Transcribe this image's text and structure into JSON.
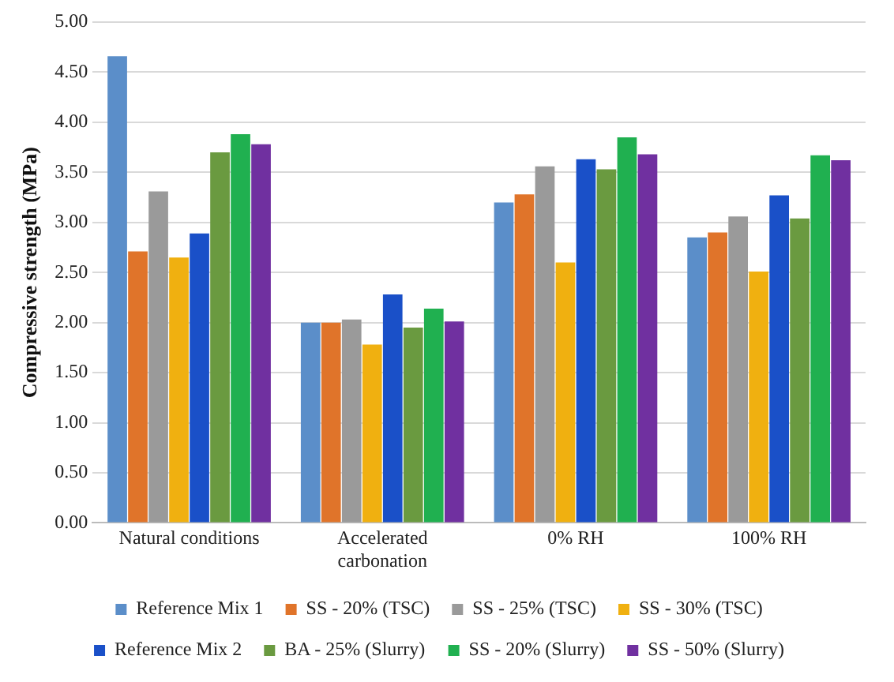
{
  "chart_data": {
    "type": "bar",
    "ylabel": "Compressive strength (MPa)",
    "categories": [
      "Natural conditions",
      "Accelerated carbonation",
      "0% RH",
      "100% RH"
    ],
    "series": [
      {
        "name": "Reference Mix 1",
        "color": "#5b8ec9",
        "values": [
          4.66,
          2.0,
          3.2,
          2.85
        ]
      },
      {
        "name": "SS - 20% (TSC)",
        "color": "#e0742a",
        "values": [
          2.71,
          2.0,
          3.28,
          2.9
        ]
      },
      {
        "name": "SS - 25% (TSC)",
        "color": "#9a9a9a",
        "values": [
          3.31,
          2.03,
          3.56,
          3.06
        ]
      },
      {
        "name": "SS - 30% (TSC)",
        "color": "#f0b010",
        "values": [
          2.65,
          1.78,
          2.6,
          2.51
        ]
      },
      {
        "name": "Reference Mix 2",
        "color": "#1a50c8",
        "values": [
          2.89,
          2.28,
          3.63,
          3.27
        ]
      },
      {
        "name": "BA - 25% (Slurry)",
        "color": "#6a9a40",
        "values": [
          3.7,
          1.95,
          3.53,
          3.04
        ]
      },
      {
        "name": "SS - 20% (Slurry)",
        "color": "#20b050",
        "values": [
          3.88,
          2.14,
          3.85,
          3.67
        ]
      },
      {
        "name": "SS - 50% (Slurry)",
        "color": "#7030a0",
        "values": [
          3.78,
          2.01,
          3.68,
          3.62
        ]
      }
    ],
    "ylim": [
      0,
      5
    ],
    "yticks": [
      {
        "value": 0,
        "label": "0.00"
      },
      {
        "value": 0.5,
        "label": "0.50"
      },
      {
        "value": 1,
        "label": "1.00"
      },
      {
        "value": 1.5,
        "label": "1.50"
      },
      {
        "value": 2,
        "label": "2.00"
      },
      {
        "value": 2.5,
        "label": "2.50"
      },
      {
        "value": 3,
        "label": "3.00"
      },
      {
        "value": 3.5,
        "label": "3.50"
      },
      {
        "value": 4,
        "label": "4.00"
      },
      {
        "value": 4.5,
        "label": "4.50"
      },
      {
        "value": 5,
        "label": "5.00"
      }
    ],
    "grid": "y",
    "legend": "bottom"
  }
}
